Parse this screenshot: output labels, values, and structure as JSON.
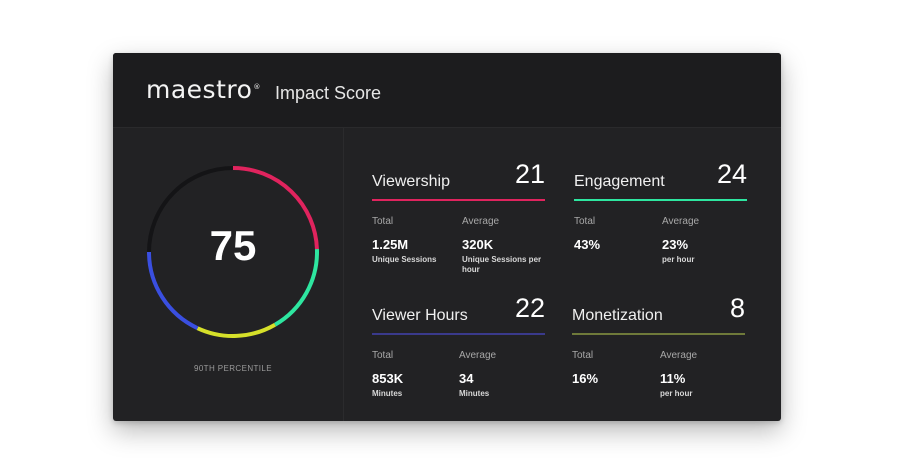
{
  "header": {
    "logo": "maestro",
    "logo_mark": "®",
    "title": "Impact Score"
  },
  "score": {
    "value": "75",
    "percentile_label": "90TH PERCENTILE",
    "fraction": 0.75
  },
  "colors": {
    "viewership": "#e0245e",
    "engagement": "#2ee6a0",
    "viewer_hours": "#3a3a8c",
    "monetization": "#6f7a3a",
    "ring_blue": "#3a4fe0",
    "ring_yellow": "#d6e02a",
    "ring_track": "#141416"
  },
  "metrics": {
    "viewership": {
      "title": "Viewership",
      "score": "21",
      "total": {
        "label": "Total",
        "value": "1.25M",
        "unit": "Unique Sessions"
      },
      "average": {
        "label": "Average",
        "value": "320K",
        "unit": "Unique Sessions per hour"
      }
    },
    "engagement": {
      "title": "Engagement",
      "score": "24",
      "total": {
        "label": "Total",
        "value": "43%",
        "unit": ""
      },
      "average": {
        "label": "Average",
        "value": "23%",
        "unit": "per hour"
      }
    },
    "viewer_hours": {
      "title": "Viewer Hours",
      "score": "22",
      "total": {
        "label": "Total",
        "value": "853K",
        "unit": "Minutes"
      },
      "average": {
        "label": "Average",
        "value": "34",
        "unit": "Minutes"
      }
    },
    "monetization": {
      "title": "Monetization",
      "score": "8",
      "total": {
        "label": "Total",
        "value": "16%",
        "unit": ""
      },
      "average": {
        "label": "Average",
        "value": "11%",
        "unit": "per hour"
      }
    }
  }
}
